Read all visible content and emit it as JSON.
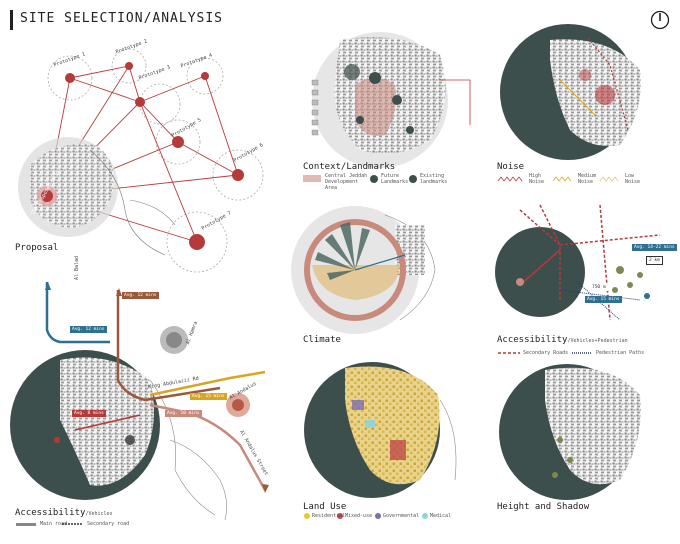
{
  "title": "SITE SELECTION/ANALYSIS",
  "panels": {
    "proposal": "Proposal",
    "accessibility_vehicles": "Accessibility",
    "accessibility_vehicles_sub": "/Vehicles",
    "context": "Context/Landmarks",
    "climate": "Climate",
    "land_use": "Land Use",
    "noise": "Noise",
    "access_ped": "Accessibility",
    "access_ped_sub": "/Vehicles+Pedestrian",
    "height": "Height and Shadow"
  },
  "prototypes": [
    "Prototype 1",
    "Prototype 2",
    "Prototype 3",
    "Prototype 4",
    "Prototype 5",
    "Prototype 6",
    "Prototype 7"
  ],
  "proposal_site": "The Proposed Site",
  "legends": {
    "vehicles": [
      "Main road",
      "Secondary road"
    ],
    "context": [
      "Central Jeddah Development Area",
      "Future Landmarks",
      "Existing landmarks"
    ],
    "noise": [
      "High Noise",
      "Medium Noise",
      "Low Noise"
    ],
    "pedestrian": [
      "Secondary Roads",
      "Pedestrian Paths"
    ],
    "land_use": [
      "Residential",
      "Mixed-use",
      "Governmental",
      "Medical"
    ]
  },
  "road_names": [
    "Al Balad",
    "Al Hamra",
    "Al Andalus",
    "Al Andalus Street",
    "King Abdulaziz Rd"
  ],
  "tags": [
    "Avg. 12 mins",
    "Avg. 12 mins",
    "Avg. 8 mins",
    "Avg. 10 mins",
    "Avg. 15 mins",
    "Avg. 12 mins",
    "Avg. 14-22 mins",
    "2 km",
    "Avg. 15 mins",
    "750 m"
  ],
  "colors": {
    "red": "#b53a3a",
    "dark_teal": "#3d4f4c",
    "blue": "#2f6f8f",
    "gold": "#d9a520",
    "brown": "#9a5a3a",
    "rose": "#c98a7e",
    "wheat": "#e2c28c"
  }
}
